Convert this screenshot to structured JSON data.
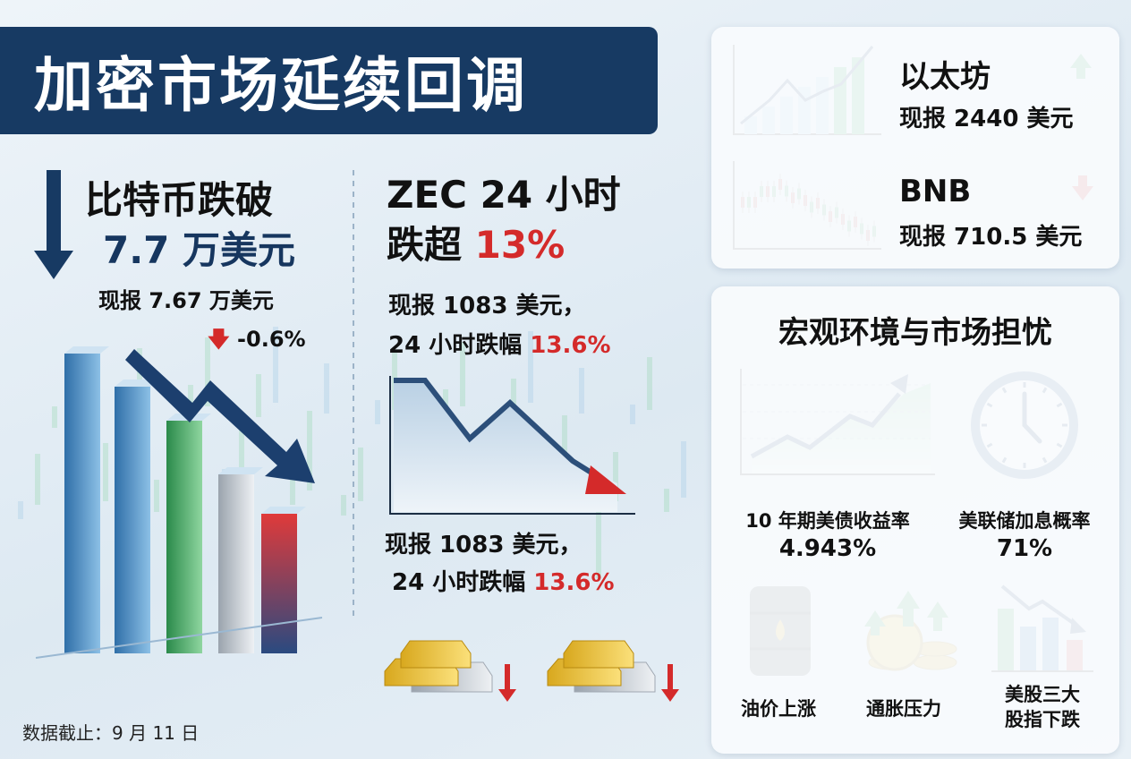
{
  "header": {
    "title": "加密市场延续回调"
  },
  "bitcoin": {
    "headline": "比特币跌破",
    "threshold": "7.7 万美元",
    "price": "现报 7.67 万美元",
    "change": "-0.6%"
  },
  "zec": {
    "headline": [
      "ZEC 24 小时",
      "跌超",
      "13%"
    ],
    "detail": {
      "price": "现报 1083 美元，",
      "change_label": "24 小时跌幅",
      "change_value": "13.6%"
    }
  },
  "coins": [
    {
      "name": "以太坊",
      "price": "现报 2440 美元"
    },
    {
      "name": "BNB",
      "price": "现报 710.5 美元"
    }
  ],
  "macro": {
    "title": "宏观环境与市场担忧",
    "indicators": [
      {
        "label": "10 年期美债收益率",
        "value": "4.943%"
      },
      {
        "label": "美联储加息概率",
        "value": "71%"
      }
    ],
    "concerns": [
      [
        "油价上涨"
      ],
      [
        "通胀压力"
      ],
      [
        "美股三大",
        "股指下跌"
      ]
    ]
  },
  "footer": {
    "note": "数据截止：9 月 11 日"
  }
}
